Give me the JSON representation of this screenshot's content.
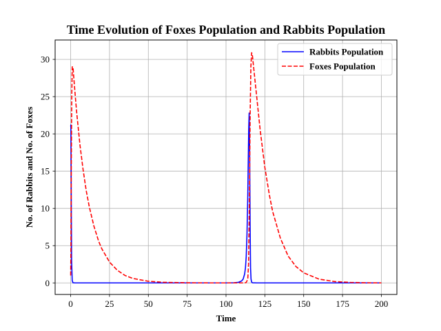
{
  "chart_data": {
    "type": "line",
    "title": "Time Evolution of Foxes Population and Rabbits Population",
    "xlabel": "Time",
    "ylabel": "No. of Rabbits and No. of Foxes",
    "xlim": [
      -10,
      210
    ],
    "ylim": [
      -1.55,
      32.6
    ],
    "xticks": [
      0,
      25,
      50,
      75,
      100,
      125,
      150,
      175,
      200
    ],
    "yticks": [
      0,
      5,
      10,
      15,
      20,
      25,
      30
    ],
    "grid": true,
    "legend_position": "top-right",
    "series": [
      {
        "name": "Rabbits Population",
        "color": "#0000ff",
        "style": "solid",
        "x": [
          0,
          0.15,
          0.3,
          0.6,
          1,
          1.5,
          3,
          10,
          30,
          60,
          90,
          100,
          105,
          108,
          110,
          111,
          112,
          112.5,
          113,
          113.5,
          114,
          114.3,
          114.6,
          114.9,
          115.2,
          115.5,
          115.8,
          116.1,
          116.5,
          117,
          120,
          140,
          170,
          200
        ],
        "y": [
          21.0,
          21.2,
          15.0,
          3.0,
          0.3,
          0.02,
          0,
          0,
          0,
          0,
          0,
          0,
          0.02,
          0.08,
          0.25,
          0.5,
          1.2,
          2.0,
          3.5,
          6.5,
          11.5,
          16.0,
          20.5,
          22.8,
          18.0,
          8.0,
          2.0,
          0.5,
          0.1,
          0.02,
          0,
          0,
          0,
          0
        ]
      },
      {
        "name": "Foxes Population",
        "color": "#ff0000",
        "style": "dashed",
        "x": [
          0,
          0.2,
          0.4,
          0.7,
          1.0,
          1.5,
          2,
          3,
          4,
          6,
          8,
          10,
          12,
          15,
          18,
          20,
          25,
          30,
          35,
          40,
          50,
          60,
          75,
          90,
          100,
          105,
          110,
          112,
          113,
          114,
          114.5,
          115,
          115.5,
          116,
          116.5,
          117,
          118,
          120,
          122,
          125,
          128,
          130,
          135,
          140,
          145,
          150,
          160,
          170,
          180,
          190,
          200
        ],
        "y": [
          1.0,
          5.0,
          15.0,
          25.0,
          29.0,
          29.0,
          27.6,
          25.0,
          22.6,
          18.5,
          15.2,
          12.4,
          10.2,
          7.6,
          5.6,
          4.6,
          2.8,
          1.7,
          1.0,
          0.6,
          0.22,
          0.08,
          0.02,
          0,
          0,
          0,
          0,
          0,
          0.05,
          0.5,
          2.5,
          10.0,
          22.0,
          29.0,
          30.9,
          30.5,
          28.5,
          24.5,
          20.5,
          15.5,
          11.7,
          9.6,
          6.0,
          3.6,
          2.2,
          1.35,
          0.5,
          0.18,
          0.07,
          0.02,
          0
        ]
      }
    ]
  }
}
